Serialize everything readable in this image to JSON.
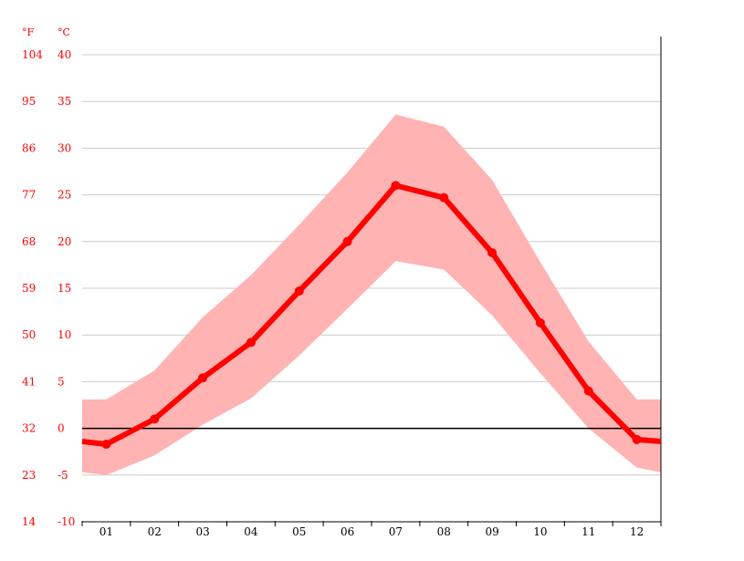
{
  "chart_data": {
    "type": "line",
    "title": "",
    "xlabel": "",
    "ylabel": "",
    "unit_f": "°F",
    "unit_c": "°C",
    "categories": [
      "01",
      "02",
      "03",
      "04",
      "05",
      "06",
      "07",
      "08",
      "09",
      "10",
      "11",
      "12"
    ],
    "ylim": [
      -10,
      40
    ],
    "yticks_c": [
      40,
      35,
      30,
      25,
      20,
      15,
      10,
      5,
      0,
      -5,
      -10
    ],
    "yticks_f": [
      104,
      95,
      86,
      77,
      68,
      59,
      50,
      41,
      32,
      23,
      14
    ],
    "series": [
      {
        "values": [
          -1.7,
          1.0,
          5.4,
          9.2,
          14.7,
          20.0,
          26.0,
          24.7,
          18.8,
          11.3,
          4.0,
          -1.2
        ]
      },
      {
        "values": [
          3.1,
          6.2,
          11.9,
          16.4,
          21.8,
          27.4,
          33.6,
          32.3,
          26.6,
          17.8,
          9.3,
          3.1
        ]
      },
      {
        "values": [
          -5.0,
          -2.9,
          0.4,
          3.2,
          7.8,
          12.8,
          17.9,
          17.0,
          12.1,
          5.9,
          0.0,
          -4.2
        ]
      }
    ],
    "edge_start": {
      "avg": -1.4,
      "max": 3.1,
      "min": -4.7
    },
    "edge_end": {
      "avg": -1.4,
      "max": 3.1,
      "min": -4.7
    },
    "colors": {
      "line": "#ff0000",
      "band": "#ffb3b3",
      "grid": "#cccccc",
      "zero": "#000000",
      "label": "#ff0000",
      "xlabel": "#000000"
    },
    "grid": true,
    "legend": "none"
  }
}
